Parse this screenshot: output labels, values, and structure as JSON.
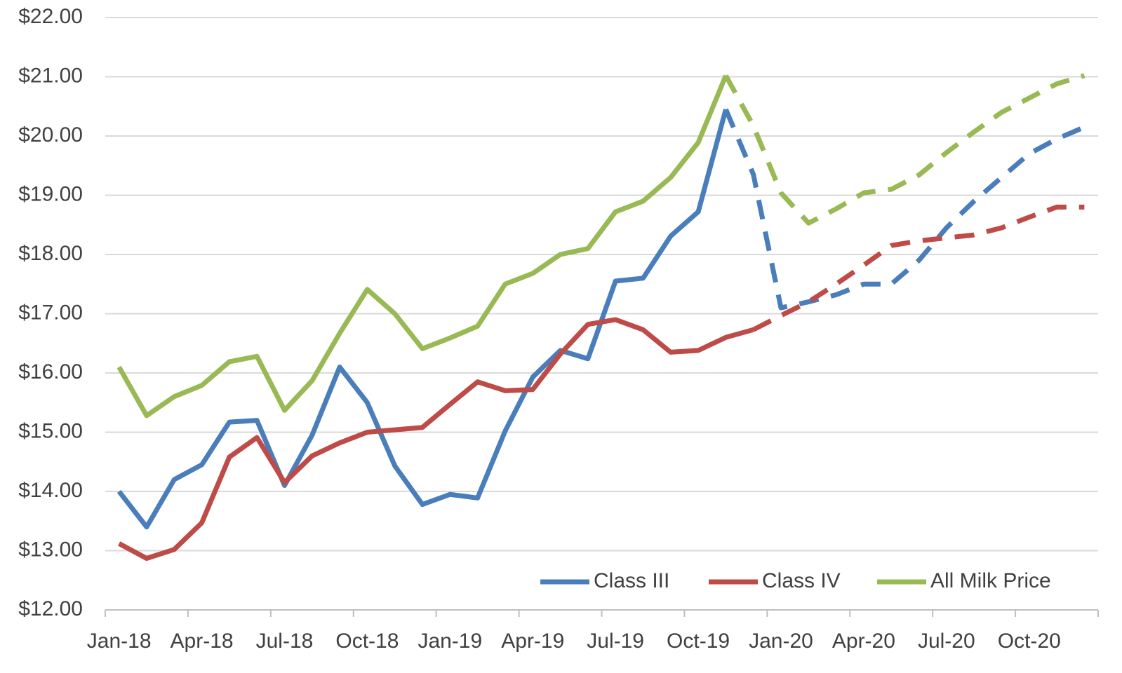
{
  "chart_data": {
    "type": "line",
    "categories": [
      "Jan-18",
      null,
      null,
      "Apr-18",
      null,
      null,
      "Jul-18",
      null,
      null,
      "Oct-18",
      null,
      null,
      "Jan-19",
      null,
      null,
      "Apr-19",
      null,
      null,
      "Jul-19",
      null,
      null,
      "Oct-19",
      null,
      null,
      "Jan-20",
      null,
      null,
      "Apr-20",
      null,
      null,
      "Jul-20",
      null,
      null,
      "Oct-20",
      null,
      null
    ],
    "series": [
      {
        "name": "Class III",
        "color": "#4a7ebb",
        "dash_from": 22,
        "values": [
          14.0,
          13.4,
          14.2,
          14.45,
          15.17,
          15.2,
          14.1,
          14.95,
          16.1,
          15.5,
          14.43,
          13.78,
          13.95,
          13.89,
          15.02,
          15.93,
          16.38,
          16.24,
          17.55,
          17.6,
          18.31,
          18.72,
          20.45,
          19.35,
          17.1,
          17.2,
          17.32,
          17.5,
          17.5,
          17.9,
          18.45,
          18.9,
          19.3,
          19.7,
          19.95,
          20.15
        ]
      },
      {
        "name": "Class IV",
        "color": "#be4b48",
        "dash_from": 23,
        "values": [
          13.12,
          12.87,
          13.02,
          13.47,
          14.58,
          14.91,
          14.15,
          14.6,
          14.82,
          15.0,
          15.04,
          15.08,
          15.47,
          15.85,
          15.7,
          15.72,
          16.32,
          16.82,
          16.9,
          16.73,
          16.35,
          16.38,
          16.6,
          16.73,
          16.97,
          17.2,
          17.5,
          17.82,
          18.15,
          18.23,
          18.28,
          18.33,
          18.45,
          18.63,
          18.8,
          18.8
        ]
      },
      {
        "name": "All Milk Price",
        "color": "#98b954",
        "dash_from": 22,
        "values": [
          16.1,
          15.28,
          15.6,
          15.79,
          16.19,
          16.28,
          15.37,
          15.87,
          16.67,
          17.41,
          17.0,
          16.41,
          16.59,
          16.79,
          17.5,
          17.68,
          18.0,
          18.1,
          18.72,
          18.9,
          19.3,
          19.89,
          21.02,
          20.17,
          19.04,
          18.53,
          18.77,
          19.04,
          19.1,
          19.34,
          19.72,
          20.07,
          20.4,
          20.64,
          20.88,
          21.02
        ]
      }
    ],
    "ylim": [
      12,
      22
    ],
    "yticks": [
      {
        "value": 12,
        "label": "$12.00"
      },
      {
        "value": 13,
        "label": "$13.00"
      },
      {
        "value": 14,
        "label": "$14.00"
      },
      {
        "value": 15,
        "label": "$15.00"
      },
      {
        "value": 16,
        "label": "$16.00"
      },
      {
        "value": 17,
        "label": "$17.00"
      },
      {
        "value": 18,
        "label": "$18.00"
      },
      {
        "value": 19,
        "label": "$19.00"
      },
      {
        "value": 20,
        "label": "$20.00"
      },
      {
        "value": 21,
        "label": "$21.00"
      },
      {
        "value": 22,
        "label": "$22.00"
      }
    ],
    "grid": true,
    "legend": "lower right"
  }
}
